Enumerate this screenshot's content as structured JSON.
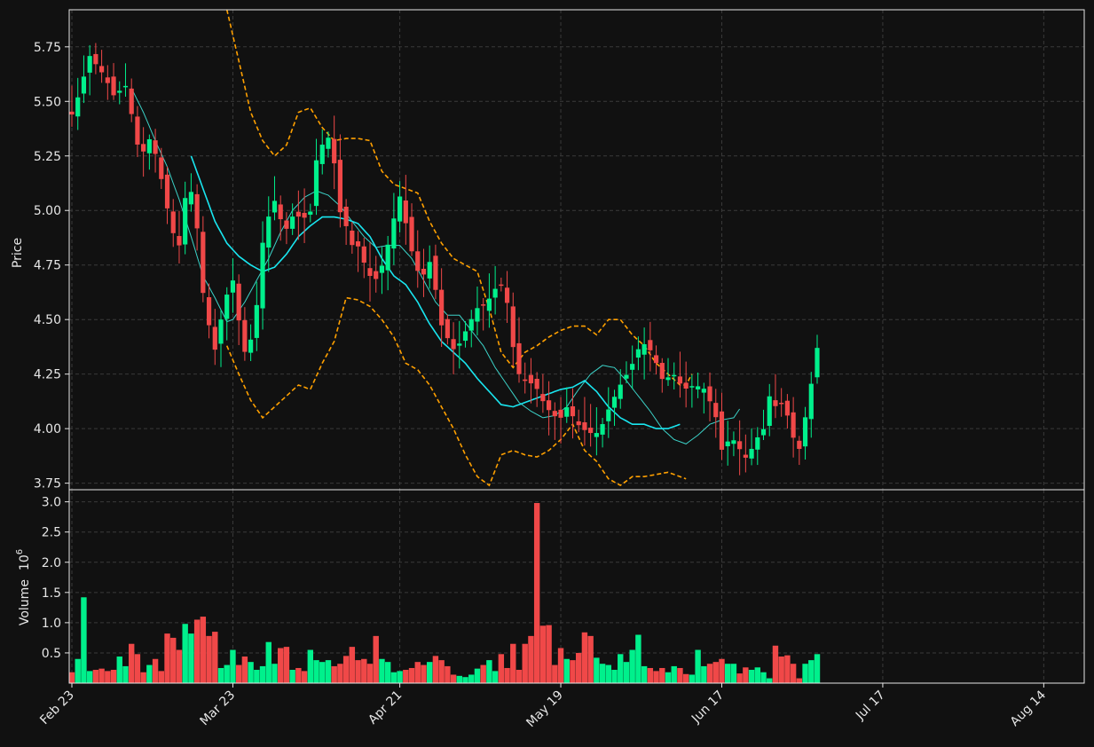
{
  "chart_data": [
    {
      "type": "candlestick",
      "panel": "price",
      "ylabel": "Price",
      "ylim": [
        3.72,
        5.92
      ],
      "yticks": [
        "3.75",
        "4.00",
        "4.25",
        "4.50",
        "4.75",
        "5.00",
        "5.25",
        "5.50",
        "5.75"
      ],
      "grid": true,
      "x_tick_labels": [
        "Feb 23",
        "Mar 23",
        "Apr 21",
        "May 19",
        "Jun 17",
        "Jul 17",
        "Aug 14"
      ],
      "x_tick_index": [
        0,
        27,
        55,
        82,
        109,
        136,
        163
      ],
      "colors": {
        "up": "#00f08c",
        "down": "#f04848",
        "ma_slow": "#19e6f0",
        "ma_fast": "#3cd2c8",
        "bands": "#ffa000"
      },
      "close_anchors": [
        [
          0,
          5.44
        ],
        [
          2,
          5.58
        ],
        [
          3,
          5.72
        ],
        [
          6,
          5.62
        ],
        [
          8,
          5.52
        ],
        [
          10,
          5.58
        ],
        [
          12,
          5.35
        ],
        [
          13,
          5.2
        ],
        [
          14,
          5.36
        ],
        [
          16,
          5.24
        ],
        [
          18,
          5.0
        ],
        [
          20,
          4.8
        ],
        [
          21,
          5.05
        ],
        [
          23,
          5.1
        ],
        [
          24,
          4.75
        ],
        [
          25,
          4.55
        ],
        [
          27,
          4.35
        ],
        [
          28,
          4.5
        ],
        [
          29,
          4.6
        ],
        [
          30,
          4.72
        ],
        [
          31,
          4.55
        ],
        [
          32,
          4.4
        ],
        [
          33,
          4.3
        ],
        [
          34,
          4.48
        ],
        [
          35,
          4.6
        ],
        [
          36,
          4.9
        ],
        [
          38,
          5.05
        ],
        [
          40,
          4.9
        ],
        [
          42,
          5.0
        ],
        [
          43,
          4.95
        ],
        [
          45,
          5.0
        ],
        [
          46,
          5.25
        ],
        [
          47,
          5.3
        ],
        [
          48,
          5.34
        ],
        [
          49,
          5.3
        ],
        [
          50,
          5.0
        ],
        [
          51,
          4.98
        ],
        [
          52,
          4.88
        ],
        [
          53,
          4.82
        ],
        [
          54,
          4.84
        ],
        [
          55,
          4.75
        ],
        [
          56,
          4.7
        ],
        [
          57,
          4.68
        ],
        [
          58,
          4.73
        ],
        [
          59,
          4.8
        ],
        [
          60,
          4.92
        ],
        [
          62,
          5.1
        ],
        [
          63,
          4.88
        ],
        [
          64,
          4.8
        ],
        [
          65,
          4.72
        ],
        [
          66,
          4.7
        ],
        [
          67,
          4.78
        ],
        [
          68,
          4.7
        ],
        [
          69,
          4.5
        ],
        [
          70,
          4.44
        ],
        [
          72,
          4.35
        ],
        [
          74,
          4.45
        ],
        [
          76,
          4.55
        ],
        [
          78,
          4.58
        ],
        [
          80,
          4.66
        ],
        [
          81,
          4.66
        ],
        [
          82,
          4.55
        ],
        [
          83,
          4.35
        ],
        [
          84,
          4.25
        ],
        [
          85,
          4.22
        ],
        [
          87,
          4.2
        ],
        [
          89,
          4.1
        ],
        [
          91,
          4.05
        ],
        [
          92,
          4.05
        ],
        [
          93,
          4.1
        ],
        [
          95,
          4.02
        ],
        [
          97,
          3.98
        ],
        [
          99,
          3.98
        ],
        [
          101,
          4.1
        ],
        [
          103,
          4.2
        ],
        [
          105,
          4.28
        ],
        [
          107,
          4.4
        ],
        [
          109,
          4.35
        ],
        [
          111,
          4.22
        ],
        [
          113,
          4.25
        ],
        [
          115,
          4.18
        ],
        [
          117,
          4.2
        ],
        [
          119,
          4.18
        ],
        [
          121,
          4.05
        ],
        [
          122,
          3.9
        ],
        [
          123,
          3.94
        ],
        [
          125,
          3.95
        ],
        [
          126,
          3.85
        ],
        [
          127,
          3.88
        ],
        [
          128,
          3.92
        ],
        [
          129,
          3.97
        ],
        [
          130,
          4.0
        ],
        [
          131,
          4.15
        ],
        [
          132,
          4.1
        ],
        [
          133,
          4.12
        ],
        [
          134,
          4.1
        ],
        [
          135,
          4.0
        ],
        [
          136,
          3.92
        ],
        [
          137,
          3.9
        ],
        [
          138,
          4.1
        ],
        [
          139,
          4.22
        ],
        [
          140,
          4.37
        ]
      ],
      "sma_10_anchors": [
        [
          10,
          5.56
        ],
        [
          12,
          5.45
        ],
        [
          14,
          5.32
        ],
        [
          16,
          5.2
        ],
        [
          18,
          5.05
        ],
        [
          20,
          4.88
        ],
        [
          22,
          4.7
        ],
        [
          24,
          4.6
        ],
        [
          26,
          4.49
        ],
        [
          27,
          4.5
        ],
        [
          29,
          4.58
        ],
        [
          31,
          4.68
        ],
        [
          33,
          4.78
        ],
        [
          35,
          4.9
        ],
        [
          37,
          5.0
        ],
        [
          39,
          5.06
        ],
        [
          41,
          5.09
        ],
        [
          43,
          5.07
        ],
        [
          45,
          5.02
        ],
        [
          47,
          4.95
        ],
        [
          49,
          4.88
        ],
        [
          51,
          4.83
        ],
        [
          53,
          4.84
        ],
        [
          55,
          4.84
        ],
        [
          57,
          4.78
        ],
        [
          59,
          4.68
        ],
        [
          61,
          4.58
        ],
        [
          63,
          4.52
        ],
        [
          65,
          4.52
        ],
        [
          67,
          4.45
        ],
        [
          69,
          4.38
        ],
        [
          71,
          4.28
        ],
        [
          73,
          4.2
        ],
        [
          75,
          4.12
        ],
        [
          77,
          4.08
        ],
        [
          79,
          4.05
        ],
        [
          81,
          4.06
        ],
        [
          83,
          4.1
        ],
        [
          85,
          4.18
        ],
        [
          87,
          4.25
        ],
        [
          89,
          4.29
        ],
        [
          91,
          4.28
        ],
        [
          93,
          4.22
        ],
        [
          95,
          4.15
        ],
        [
          97,
          4.08
        ],
        [
          99,
          4.0
        ],
        [
          101,
          3.95
        ],
        [
          103,
          3.93
        ],
        [
          105,
          3.97
        ],
        [
          107,
          4.02
        ],
        [
          109,
          4.04
        ],
        [
          111,
          4.05
        ],
        [
          112,
          4.09
        ]
      ],
      "sma_20_anchors": [
        [
          20,
          5.25
        ],
        [
          22,
          5.1
        ],
        [
          24,
          4.95
        ],
        [
          26,
          4.85
        ],
        [
          28,
          4.79
        ],
        [
          30,
          4.75
        ],
        [
          32,
          4.72
        ],
        [
          34,
          4.74
        ],
        [
          36,
          4.8
        ],
        [
          38,
          4.88
        ],
        [
          40,
          4.93
        ],
        [
          42,
          4.97
        ],
        [
          44,
          4.97
        ],
        [
          46,
          4.96
        ],
        [
          48,
          4.94
        ],
        [
          50,
          4.88
        ],
        [
          52,
          4.78
        ],
        [
          54,
          4.7
        ],
        [
          56,
          4.66
        ],
        [
          58,
          4.58
        ],
        [
          60,
          4.48
        ],
        [
          62,
          4.4
        ],
        [
          64,
          4.35
        ],
        [
          66,
          4.3
        ],
        [
          68,
          4.23
        ],
        [
          70,
          4.17
        ],
        [
          72,
          4.11
        ],
        [
          74,
          4.1
        ],
        [
          76,
          4.12
        ],
        [
          78,
          4.14
        ],
        [
          80,
          4.16
        ],
        [
          82,
          4.18
        ],
        [
          84,
          4.19
        ],
        [
          86,
          4.22
        ],
        [
          88,
          4.17
        ],
        [
          90,
          4.1
        ],
        [
          92,
          4.05
        ],
        [
          94,
          4.02
        ],
        [
          96,
          4.02
        ],
        [
          98,
          4.0
        ],
        [
          100,
          4.0
        ],
        [
          101,
          4.01
        ],
        [
          102,
          4.02
        ]
      ],
      "upper_band_anchors": [
        [
          26,
          5.92
        ],
        [
          30,
          5.45
        ],
        [
          32,
          5.32
        ],
        [
          34,
          5.25
        ],
        [
          36,
          5.3
        ],
        [
          38,
          5.45
        ],
        [
          40,
          5.47
        ],
        [
          42,
          5.38
        ],
        [
          44,
          5.32
        ],
        [
          46,
          5.33
        ],
        [
          48,
          5.33
        ],
        [
          50,
          5.32
        ],
        [
          52,
          5.18
        ],
        [
          54,
          5.12
        ],
        [
          56,
          5.1
        ],
        [
          58,
          5.08
        ],
        [
          60,
          4.95
        ],
        [
          62,
          4.85
        ],
        [
          64,
          4.78
        ],
        [
          66,
          4.75
        ],
        [
          68,
          4.72
        ],
        [
          70,
          4.55
        ],
        [
          72,
          4.35
        ],
        [
          74,
          4.28
        ],
        [
          76,
          4.35
        ],
        [
          78,
          4.38
        ],
        [
          80,
          4.42
        ],
        [
          82,
          4.45
        ],
        [
          84,
          4.47
        ],
        [
          86,
          4.47
        ],
        [
          88,
          4.43
        ],
        [
          90,
          4.5
        ],
        [
          92,
          4.5
        ],
        [
          94,
          4.43
        ],
        [
          96,
          4.38
        ],
        [
          98,
          4.3
        ],
        [
          100,
          4.25
        ],
        [
          102,
          4.2
        ],
        [
          103,
          4.2
        ],
        [
          104,
          4.25
        ]
      ],
      "lower_band_anchors": [
        [
          26,
          4.38
        ],
        [
          28,
          4.25
        ],
        [
          30,
          4.13
        ],
        [
          32,
          4.05
        ],
        [
          34,
          4.1
        ],
        [
          36,
          4.15
        ],
        [
          38,
          4.2
        ],
        [
          40,
          4.18
        ],
        [
          42,
          4.3
        ],
        [
          44,
          4.4
        ],
        [
          46,
          4.6
        ],
        [
          48,
          4.59
        ],
        [
          50,
          4.56
        ],
        [
          52,
          4.5
        ],
        [
          54,
          4.42
        ],
        [
          56,
          4.3
        ],
        [
          58,
          4.27
        ],
        [
          60,
          4.2
        ],
        [
          62,
          4.1
        ],
        [
          64,
          4.0
        ],
        [
          66,
          3.88
        ],
        [
          68,
          3.78
        ],
        [
          70,
          3.74
        ],
        [
          72,
          3.88
        ],
        [
          74,
          3.9
        ],
        [
          76,
          3.88
        ],
        [
          78,
          3.87
        ],
        [
          80,
          3.9
        ],
        [
          82,
          3.95
        ],
        [
          84,
          4.02
        ],
        [
          86,
          3.9
        ],
        [
          88,
          3.85
        ],
        [
          90,
          3.77
        ],
        [
          92,
          3.74
        ],
        [
          94,
          3.78
        ],
        [
          96,
          3.78
        ],
        [
          98,
          3.79
        ],
        [
          100,
          3.8
        ],
        [
          102,
          3.78
        ],
        [
          103,
          3.77
        ]
      ]
    },
    {
      "type": "bar",
      "panel": "volume",
      "ylabel": "Volume",
      "ylabel_exponent": "10",
      "ylabel_exponent_power": "6",
      "ylim": [
        0,
        3.2
      ],
      "yticks": [
        "0.5",
        "1.0",
        "1.5",
        "2.0",
        "2.5",
        "3.0"
      ],
      "grid": true,
      "values": [
        0.18,
        0.4,
        1.42,
        0.2,
        0.22,
        0.24,
        0.2,
        0.22,
        0.44,
        0.28,
        0.65,
        0.48,
        0.18,
        0.3,
        0.4,
        0.2,
        0.82,
        0.75,
        0.55,
        0.98,
        0.82,
        1.05,
        1.1,
        0.78,
        0.85,
        0.25,
        0.3,
        0.55,
        0.3,
        0.44,
        0.35,
        0.22,
        0.28,
        0.68,
        0.32,
        0.58,
        0.6,
        0.22,
        0.25,
        0.2,
        0.55,
        0.38,
        0.35,
        0.38,
        0.28,
        0.32,
        0.45,
        0.6,
        0.38,
        0.4,
        0.32,
        0.78,
        0.4,
        0.35,
        0.18,
        0.2,
        0.22,
        0.25,
        0.35,
        0.3,
        0.35,
        0.45,
        0.38,
        0.28,
        0.14,
        0.12,
        0.1,
        0.14,
        0.24,
        0.3,
        0.38,
        0.2,
        0.48,
        0.25,
        0.65,
        0.22,
        0.65,
        0.78,
        2.98,
        0.95,
        0.96,
        0.3,
        0.58,
        0.4,
        0.38,
        0.5,
        0.84,
        0.78,
        0.42,
        0.32,
        0.3,
        0.22,
        0.48,
        0.35,
        0.55,
        0.8,
        0.28,
        0.25,
        0.2,
        0.25,
        0.18,
        0.28,
        0.25,
        0.15,
        0.14,
        0.55,
        0.28,
        0.32,
        0.35,
        0.4,
        0.32,
        0.32,
        0.16,
        0.26,
        0.22,
        0.26,
        0.18,
        0.08,
        0.62,
        0.44,
        0.46,
        0.32,
        0.08,
        0.32,
        0.38,
        0.48
      ]
    }
  ]
}
